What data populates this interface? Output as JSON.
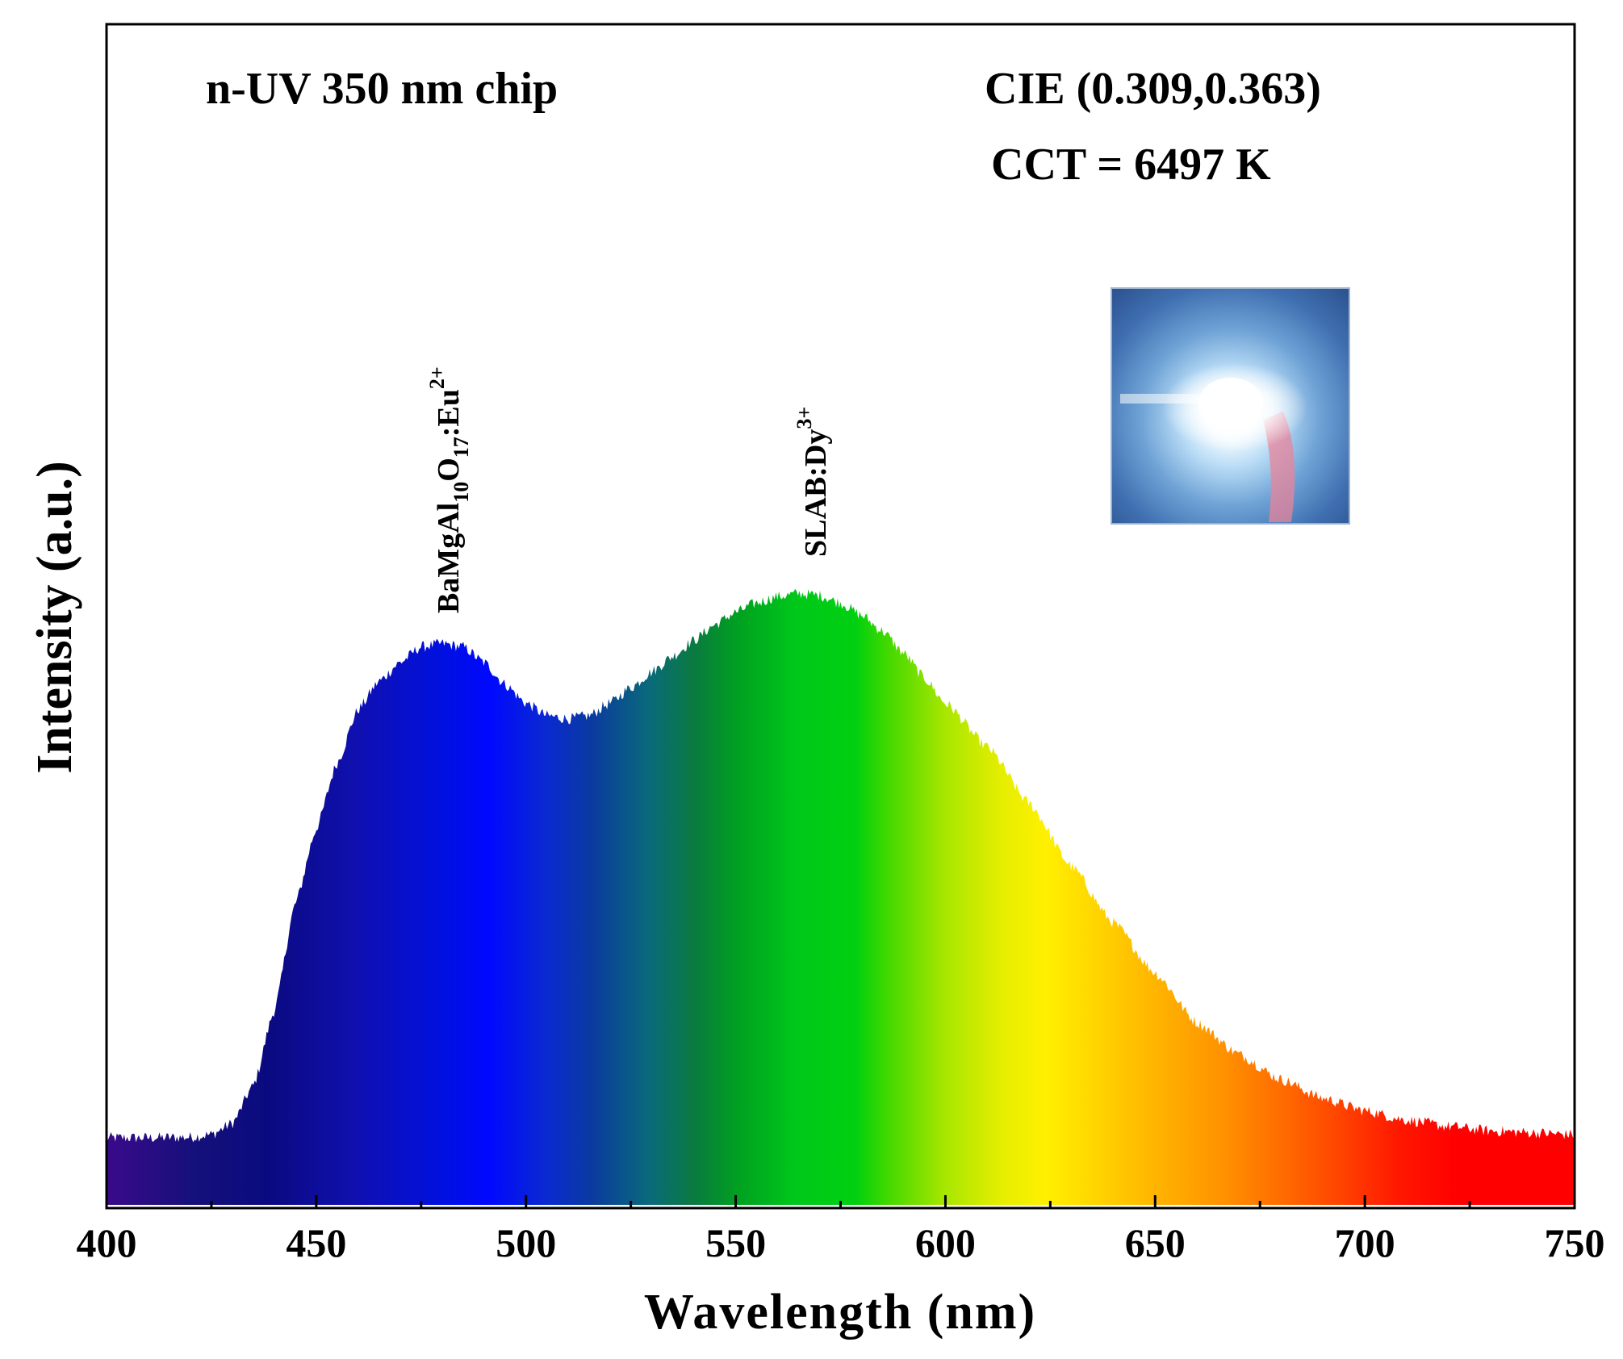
{
  "chart_data": {
    "type": "area",
    "title": "",
    "xlabel": "Wavelength (nm)",
    "ylabel": "Intensity (a.u.)",
    "xlim": [
      400,
      750
    ],
    "ylim": [
      0,
      1
    ],
    "x_ticks": [
      400,
      450,
      500,
      550,
      600,
      650,
      700,
      750
    ],
    "x_tick_labels": [
      "400",
      "450",
      "500",
      "550",
      "600",
      "650",
      "700",
      "750"
    ],
    "y_tick_labels_shown": false,
    "grid": false,
    "fill": "visible-spectrum gradient (violet to red)",
    "series": [
      {
        "x": [
          400,
          410,
          420,
          425,
          430,
          435,
          440,
          445,
          450,
          455,
          460,
          465,
          470,
          475,
          480,
          485,
          490,
          495,
          500,
          505,
          510,
          515,
          520,
          525,
          530,
          535,
          540,
          545,
          550,
          555,
          560,
          565,
          570,
          575,
          580,
          585,
          590,
          595,
          600,
          610,
          620,
          630,
          640,
          650,
          660,
          670,
          680,
          690,
          700,
          710,
          720,
          730,
          740,
          750
        ],
        "y": [
          0.107,
          0.107,
          0.108,
          0.112,
          0.13,
          0.19,
          0.31,
          0.48,
          0.6,
          0.705,
          0.79,
          0.835,
          0.865,
          0.89,
          0.895,
          0.89,
          0.865,
          0.83,
          0.8,
          0.78,
          0.775,
          0.78,
          0.8,
          0.825,
          0.85,
          0.875,
          0.9,
          0.925,
          0.945,
          0.96,
          0.97,
          0.975,
          0.972,
          0.96,
          0.94,
          0.915,
          0.88,
          0.84,
          0.8,
          0.73,
          0.64,
          0.54,
          0.45,
          0.37,
          0.29,
          0.24,
          0.2,
          0.17,
          0.15,
          0.135,
          0.125,
          0.118,
          0.115,
          0.112
        ]
      }
    ],
    "annotations": {
      "chip": "n-UV 350 nm chip",
      "cie": "CIE (0.309,0.363)",
      "cct": "CCT = 6497 K",
      "peak1": {
        "base": "BaMgAl",
        "sub1": "10",
        "mid": "O",
        "sub2": "17",
        "tail": ":Eu",
        "sup": "2+"
      },
      "peak2": {
        "base": "SLAB:Dy",
        "sup": "3+"
      }
    },
    "inset": "photo of glowing white LED"
  }
}
